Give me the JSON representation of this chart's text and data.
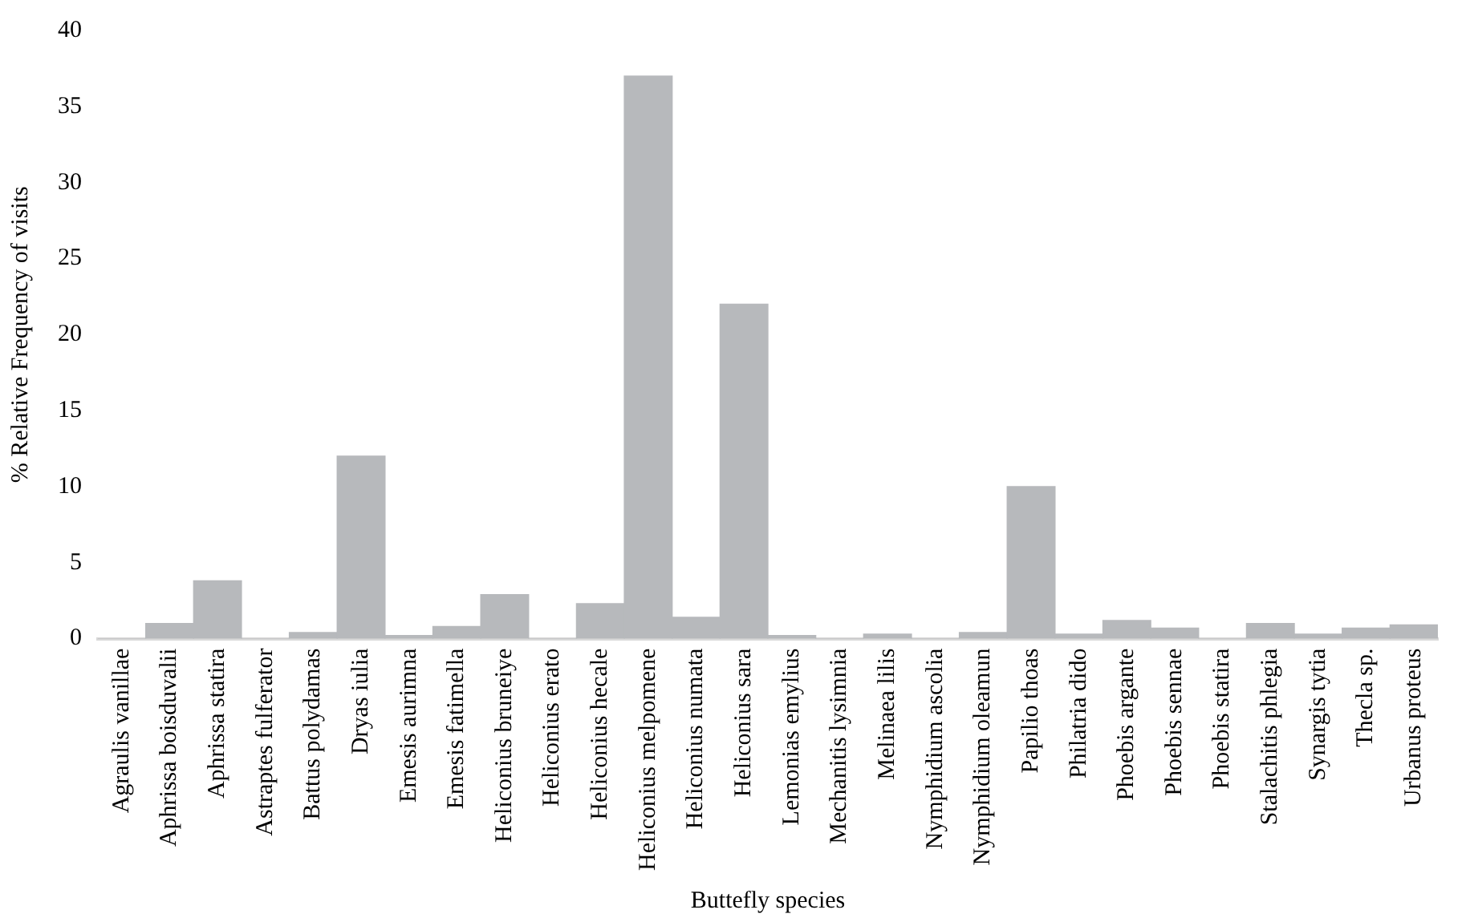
{
  "chart_data": {
    "type": "bar",
    "xlabel": "Buttefly species",
    "ylabel": "% Relative Frequency of visits",
    "categories": [
      "Agraulis vanillae",
      "Aphrissa boisduvalii",
      "Aphrissa statira",
      "Astraptes fulferator",
      "Battus polydamas",
      "Dryas iulia",
      "Emesis aurimna",
      "Emesis fatimella",
      "Heliconius bruneiye",
      "Heliconius erato",
      "Heliconius hecale",
      "Heliconius melpomene",
      "Heliconius numata",
      "Heliconius sara",
      "Lemonias emylius",
      "Mechanitis lysimnia",
      "Melinaea lilis",
      "Nymphidium ascolia",
      "Nymphidium oleamun",
      "Papilio thoas",
      "Philatria dido",
      "Phoebis argante",
      "Phoebis sennae",
      "Phoebis statira",
      "Stalachitis phlegia",
      "Synargis tytia",
      "Thecla sp.",
      "Urbanus proteus"
    ],
    "values": [
      0,
      1,
      3.8,
      0,
      0.4,
      12,
      0.2,
      0.8,
      2.9,
      0,
      2.3,
      37,
      1.4,
      22,
      0.2,
      0,
      0.3,
      0,
      0.4,
      10,
      0.3,
      1.2,
      0.7,
      0,
      1,
      0.3,
      0.7,
      0.9
    ],
    "color": "#b7b9bc",
    "ylim": [
      0,
      40
    ],
    "yticks": [
      0,
      5,
      10,
      15,
      20,
      25,
      30,
      35,
      40
    ],
    "grid": false,
    "legend": false
  }
}
